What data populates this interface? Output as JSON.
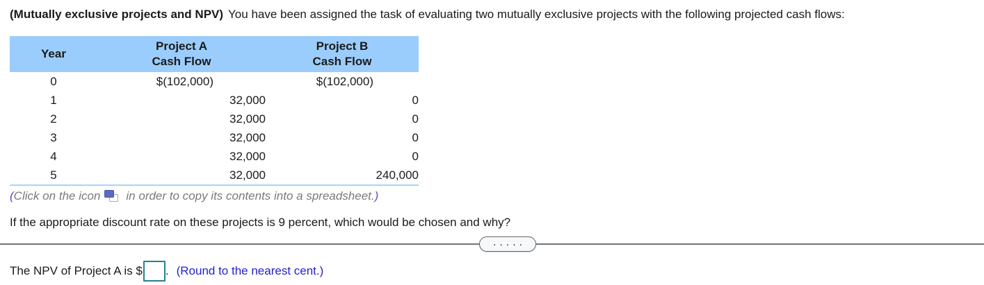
{
  "title": {
    "bold": "(Mutually exclusive projects and NPV)",
    "text": "You have been assigned the task of evaluating two mutually exclusive projects with the following projected cash flows:"
  },
  "table": {
    "header": {
      "year": "Year",
      "a1": "Project A",
      "a2": "Cash Flow",
      "b1": "Project B",
      "b2": "Cash Flow"
    },
    "rows": [
      {
        "year": "0",
        "a": "$(102,000)",
        "b": "$(102,000)"
      },
      {
        "year": "1",
        "a": "32,000",
        "b": "0"
      },
      {
        "year": "2",
        "a": "32,000",
        "b": "0"
      },
      {
        "year": "3",
        "a": "32,000",
        "b": "0"
      },
      {
        "year": "4",
        "a": "32,000",
        "b": "0"
      },
      {
        "year": "5",
        "a": "32,000",
        "b": "240,000"
      }
    ]
  },
  "note": {
    "open": "(",
    "pre": "Click on the icon",
    "post": "in order to copy its contents into a spreadsheet.",
    "close": ")"
  },
  "question": "If the appropriate discount rate on these projects is 9 percent, which would be chosen and why?",
  "divider": {
    "dots": "....."
  },
  "answer": {
    "label": "The NPV of Project A is $",
    "value": "",
    "period": ".",
    "hint": "(Round to the nearest cent.)"
  },
  "colors": {
    "table_header_bg": "#9bcdfc",
    "table_border_blue": "#a5d5f7",
    "note_gray": "#7a7a7a",
    "note_paren": "#5050c8",
    "hint_blue": "#2222cc",
    "input_border_teal": "#26808f",
    "divider_gray": "#6e747a",
    "icon_blue": "#5c6bbf"
  }
}
